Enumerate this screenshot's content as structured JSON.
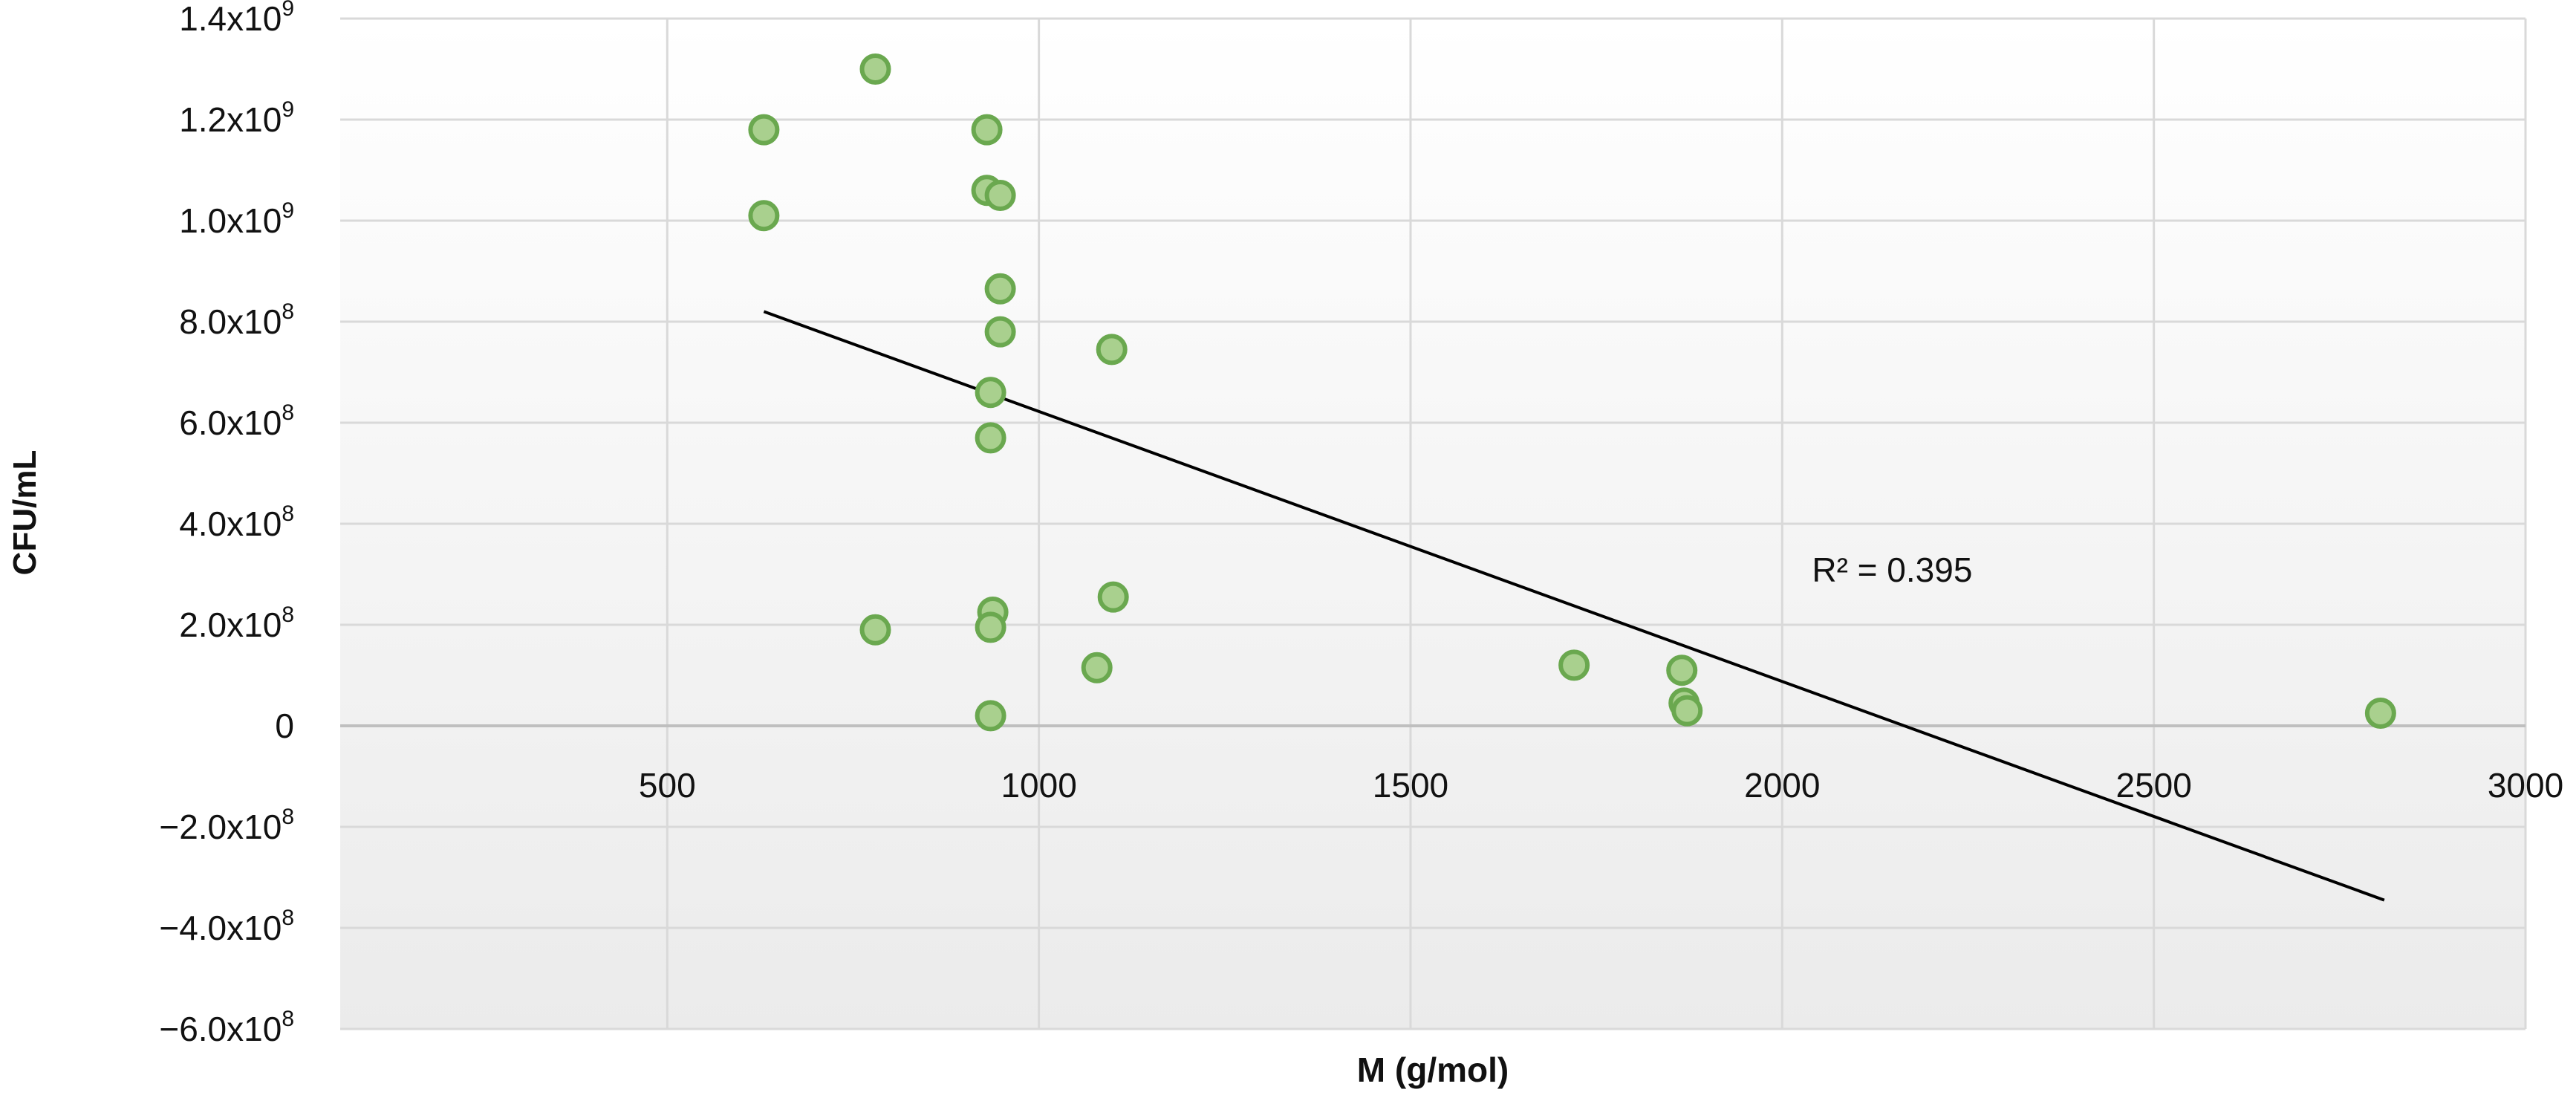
{
  "chart_data": {
    "type": "scatter",
    "title": "",
    "xlabel": "M (g/mol)",
    "ylabel": "CFU/mL",
    "xlim": [
      60,
      3000
    ],
    "ylim": [
      -600000000,
      1400000000
    ],
    "grid": true,
    "x_ticks": [
      {
        "value": 500,
        "label": "500"
      },
      {
        "value": 1000,
        "label": "1000"
      },
      {
        "value": 1500,
        "label": "1500"
      },
      {
        "value": 2000,
        "label": "2000"
      },
      {
        "value": 2500,
        "label": "2500"
      },
      {
        "value": 3000,
        "label": "3000"
      }
    ],
    "y_ticks": [
      {
        "value": 1400000000,
        "mant": "1.4x10",
        "exp": "9"
      },
      {
        "value": 1200000000,
        "mant": "1.2x10",
        "exp": "9"
      },
      {
        "value": 1000000000,
        "mant": "1.0x10",
        "exp": "9"
      },
      {
        "value": 800000000,
        "mant": "8.0x10",
        "exp": "8"
      },
      {
        "value": 600000000,
        "mant": "6.0x10",
        "exp": "8"
      },
      {
        "value": 400000000,
        "mant": "4.0x10",
        "exp": "8"
      },
      {
        "value": 200000000,
        "mant": "2.0x10",
        "exp": "8"
      },
      {
        "value": 0,
        "mant": "0",
        "exp": ""
      },
      {
        "value": -200000000,
        "mant": "−2.0x10",
        "exp": "8"
      },
      {
        "value": -400000000,
        "mant": "−4.0x10",
        "exp": "8"
      },
      {
        "value": -600000000,
        "mant": "−6.0x10",
        "exp": "8"
      }
    ],
    "points": [
      {
        "x": 630,
        "y": 1180000000
      },
      {
        "x": 630,
        "y": 1010000000
      },
      {
        "x": 780,
        "y": 1300000000
      },
      {
        "x": 780,
        "y": 190000000
      },
      {
        "x": 930,
        "y": 1180000000
      },
      {
        "x": 930,
        "y": 1060000000
      },
      {
        "x": 948,
        "y": 1050000000
      },
      {
        "x": 948,
        "y": 865000000
      },
      {
        "x": 948,
        "y": 780000000
      },
      {
        "x": 935,
        "y": 660000000
      },
      {
        "x": 935,
        "y": 570000000
      },
      {
        "x": 938,
        "y": 225000000
      },
      {
        "x": 935,
        "y": 195000000
      },
      {
        "x": 935,
        "y": 20000000
      },
      {
        "x": 1098,
        "y": 745000000
      },
      {
        "x": 1100,
        "y": 255000000
      },
      {
        "x": 1078,
        "y": 115000000
      },
      {
        "x": 1720,
        "y": 120000000
      },
      {
        "x": 1865,
        "y": 110000000
      },
      {
        "x": 1868,
        "y": 45000000
      },
      {
        "x": 1872,
        "y": 30000000
      },
      {
        "x": 2805,
        "y": 25000000
      }
    ],
    "trendline": {
      "x1": 630,
      "y1": 820000000,
      "x2": 2810,
      "y2": -345000000
    },
    "annotation": "R² = 0.395",
    "annotation_pos": {
      "x": 2040,
      "y": 285000000
    },
    "marker_color": "#a9d08e",
    "marker_edge": "#6aa84f",
    "trend_color": "#000000"
  }
}
